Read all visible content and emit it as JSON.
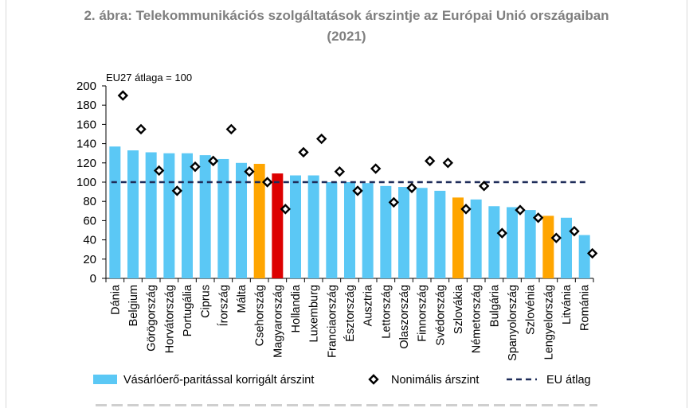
{
  "title_line1": "2. ábra: Telekommunikációs szolgáltatások árszintje az Európai Unió országaiban",
  "title_line2": "(2021)",
  "chart_data": {
    "type": "bar",
    "annotation": "EU27 átlaga = 100",
    "categories": [
      "Dánia",
      "Belgium",
      "Görögország",
      "Horvátország",
      "Portugália",
      "Ciprus",
      "Írország",
      "Málta",
      "Csehország",
      "Magyarország",
      "Hollandia",
      "Luxemburg",
      "Franciaország",
      "Észtország",
      "Ausztria",
      "Lettország",
      "Olaszország",
      "Finnország",
      "Svédország",
      "Szlovákia",
      "Németország",
      "Bulgária",
      "Spanyolország",
      "Szlovénia",
      "Lengyelország",
      "Litvánia",
      "Románia"
    ],
    "series": [
      {
        "name": "Vásárlóerő-paritással korrigált árszint",
        "kind": "bar",
        "values": [
          137,
          133,
          131,
          130,
          130,
          128,
          124,
          120,
          119,
          109,
          107,
          107,
          100,
          100,
          99,
          96,
          95,
          94,
          91,
          84,
          82,
          75,
          74,
          71,
          65,
          63,
          45
        ]
      },
      {
        "name": "Nonimális árszint",
        "kind": "marker",
        "values": [
          190,
          155,
          112,
          91,
          116,
          122,
          155,
          111,
          100,
          72,
          131,
          145,
          111,
          91,
          114,
          79,
          94,
          122,
          120,
          72,
          96,
          47,
          71,
          63,
          42,
          49,
          26
        ]
      },
      {
        "name": "EU átlag",
        "kind": "line",
        "value": 100
      }
    ],
    "highlight": {
      "Csehország": "#ffa500",
      "Szlovákia": "#ffa500",
      "Lengyelország": "#ffa500",
      "Magyarország": "#dd0000"
    },
    "colors": {
      "bar": "#5bc8f5",
      "orange": "#ffa500",
      "red": "#dd0000",
      "marker": "#000000",
      "eu_line": "#1f2d5a"
    },
    "ylim": [
      0,
      200
    ],
    "yticks": [
      0,
      20,
      40,
      60,
      80,
      100,
      120,
      140,
      160,
      180,
      200
    ],
    "xlabel": "",
    "ylabel": "",
    "legend_position": "bottom"
  }
}
